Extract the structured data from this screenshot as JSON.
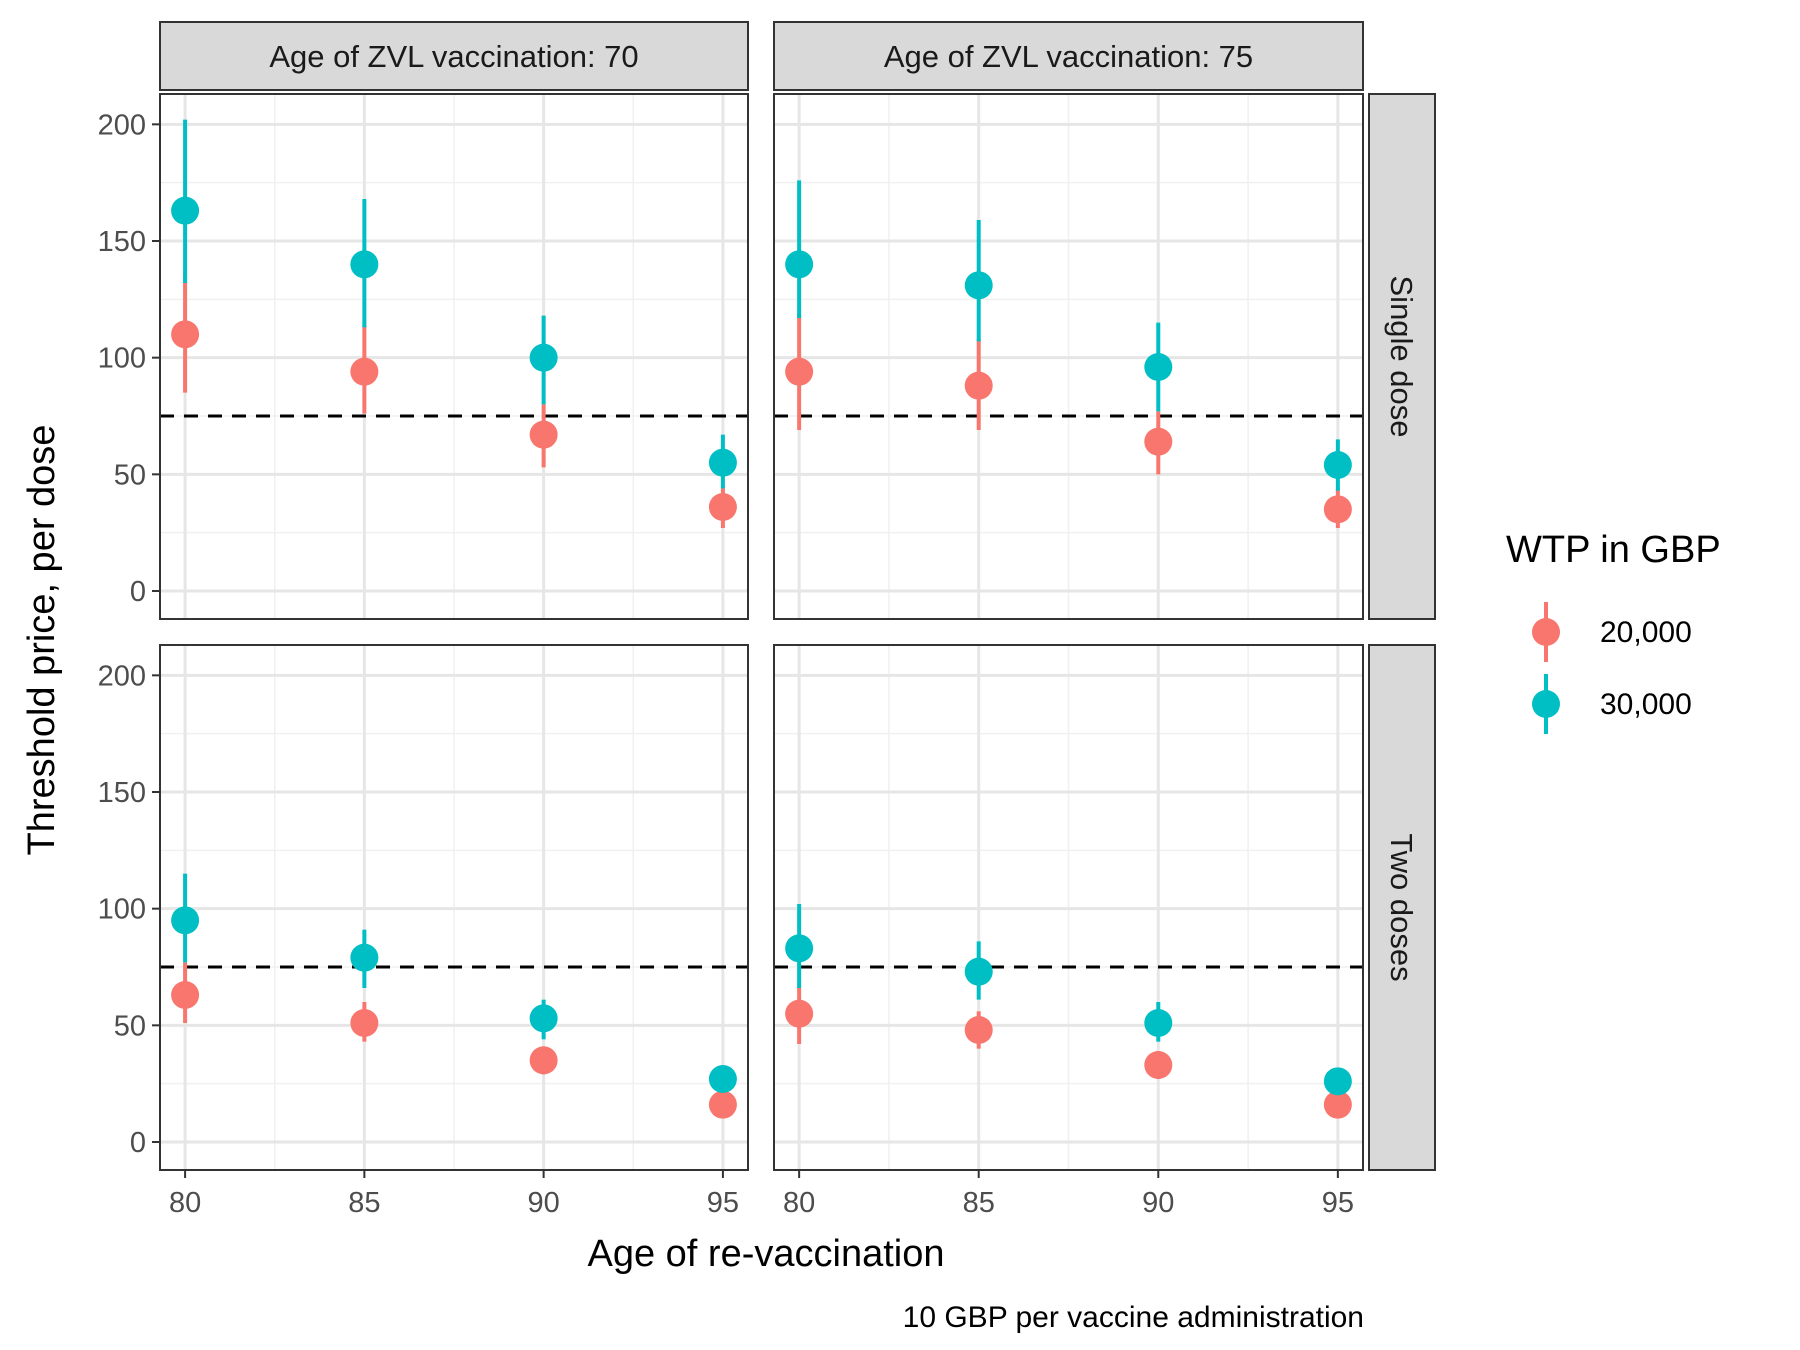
{
  "chart_data": {
    "type": "scatter",
    "subtype": "faceted point-range",
    "xlabel": "Age of re-vaccination",
    "ylabel": "Threshold price, per dose",
    "caption": "10 GBP per vaccine administration",
    "x_ticks": [
      "80",
      "85",
      "90",
      "95"
    ],
    "x_values": [
      80,
      85,
      90,
      95
    ],
    "y_ticks": [
      "0",
      "50",
      "100",
      "150",
      "200"
    ],
    "ylim": [
      -12,
      213
    ],
    "xlim": [
      79.3,
      95.7
    ],
    "reference_line": {
      "y": 75,
      "style": "dashed",
      "color": "#000000"
    },
    "grid": true,
    "legend": {
      "title": "WTP in GBP",
      "position": "right",
      "items": [
        {
          "label": "20,000",
          "color": "#F8766D"
        },
        {
          "label": "30,000",
          "color": "#00BFC4"
        }
      ]
    },
    "column_strips": [
      "Age of ZVL vaccination: 70",
      "Age of ZVL vaccination: 75"
    ],
    "row_strips": [
      "Single dose",
      "Two doses"
    ],
    "panels": [
      {
        "row": 0,
        "col": 0,
        "series": [
          {
            "name": "20,000",
            "points": [
              {
                "x": 80,
                "y": 110,
                "lo": 85,
                "hi": 137
              },
              {
                "x": 85,
                "y": 94,
                "lo": 76,
                "hi": 114
              },
              {
                "x": 90,
                "y": 67,
                "lo": 53,
                "hi": 80
              },
              {
                "x": 95,
                "y": 36,
                "lo": 27,
                "hi": 45
              }
            ]
          },
          {
            "name": "30,000",
            "points": [
              {
                "x": 80,
                "y": 163,
                "lo": 132,
                "hi": 202
              },
              {
                "x": 85,
                "y": 140,
                "lo": 113,
                "hi": 168
              },
              {
                "x": 90,
                "y": 100,
                "lo": 80,
                "hi": 118
              },
              {
                "x": 95,
                "y": 55,
                "lo": 44,
                "hi": 67
              }
            ]
          }
        ]
      },
      {
        "row": 0,
        "col": 1,
        "series": [
          {
            "name": "20,000",
            "points": [
              {
                "x": 80,
                "y": 94,
                "lo": 69,
                "hi": 119
              },
              {
                "x": 85,
                "y": 88,
                "lo": 69,
                "hi": 108
              },
              {
                "x": 90,
                "y": 64,
                "lo": 50,
                "hi": 77
              },
              {
                "x": 95,
                "y": 35,
                "lo": 27,
                "hi": 44
              }
            ]
          },
          {
            "name": "30,000",
            "points": [
              {
                "x": 80,
                "y": 140,
                "lo": 117,
                "hi": 176
              },
              {
                "x": 85,
                "y": 131,
                "lo": 107,
                "hi": 159
              },
              {
                "x": 90,
                "y": 96,
                "lo": 77,
                "hi": 115
              },
              {
                "x": 95,
                "y": 54,
                "lo": 43,
                "hi": 65
              }
            ]
          }
        ]
      },
      {
        "row": 1,
        "col": 0,
        "series": [
          {
            "name": "20,000",
            "points": [
              {
                "x": 80,
                "y": 63,
                "lo": 51,
                "hi": 77
              },
              {
                "x": 85,
                "y": 51,
                "lo": 43,
                "hi": 60
              },
              {
                "x": 90,
                "y": 35,
                "lo": 29,
                "hi": 41
              },
              {
                "x": 95,
                "y": 16,
                "lo": 13,
                "hi": 20
              }
            ]
          },
          {
            "name": "30,000",
            "points": [
              {
                "x": 80,
                "y": 95,
                "lo": 77,
                "hi": 115
              },
              {
                "x": 85,
                "y": 79,
                "lo": 66,
                "hi": 91
              },
              {
                "x": 90,
                "y": 53,
                "lo": 44,
                "hi": 61
              },
              {
                "x": 95,
                "y": 27,
                "lo": 22,
                "hi": 32
              }
            ]
          }
        ]
      },
      {
        "row": 1,
        "col": 1,
        "series": [
          {
            "name": "20,000",
            "points": [
              {
                "x": 80,
                "y": 55,
                "lo": 42,
                "hi": 67
              },
              {
                "x": 85,
                "y": 48,
                "lo": 40,
                "hi": 56
              },
              {
                "x": 90,
                "y": 33,
                "lo": 27,
                "hi": 39
              },
              {
                "x": 95,
                "y": 16,
                "lo": 13,
                "hi": 19
              }
            ]
          },
          {
            "name": "30,000",
            "points": [
              {
                "x": 80,
                "y": 83,
                "lo": 66,
                "hi": 102
              },
              {
                "x": 85,
                "y": 73,
                "lo": 61,
                "hi": 86
              },
              {
                "x": 90,
                "y": 51,
                "lo": 43,
                "hi": 60
              },
              {
                "x": 95,
                "y": 26,
                "lo": 21,
                "hi": 31
              }
            ]
          }
        ]
      }
    ]
  }
}
